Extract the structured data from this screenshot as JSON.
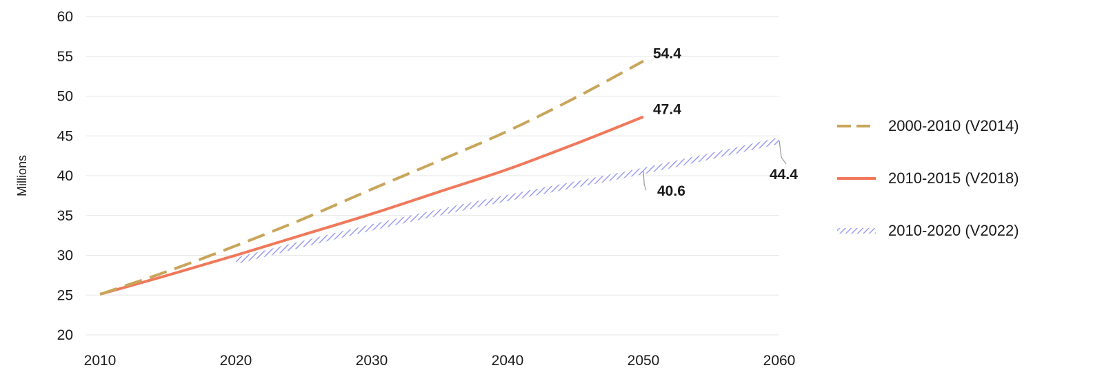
{
  "chart_data": {
    "type": "line",
    "title": "",
    "xlabel": "",
    "ylabel": "Millions",
    "xlim": [
      2010,
      2060
    ],
    "ylim": [
      20,
      60
    ],
    "xticks": [
      "2010",
      "2020",
      "2030",
      "2040",
      "2050",
      "2060"
    ],
    "yticks": [
      "20",
      "25",
      "30",
      "35",
      "40",
      "45",
      "50",
      "55",
      "60"
    ],
    "grid": true,
    "legend_position": "right",
    "series": [
      {
        "name": "2000-2010 (V2014)",
        "style": "dashed",
        "color": "#c8a559",
        "x": [
          2010,
          2015,
          2020,
          2025,
          2030,
          2035,
          2040,
          2045,
          2050
        ],
        "y": [
          25.1,
          28.0,
          31.2,
          34.6,
          38.3,
          41.9,
          45.6,
          49.8,
          54.4
        ]
      },
      {
        "name": "2010-2015 (V2018)",
        "style": "solid",
        "color": "#f0795b",
        "x": [
          2010,
          2015,
          2020,
          2025,
          2030,
          2035,
          2040,
          2045,
          2050
        ],
        "y": [
          25.1,
          27.5,
          30.0,
          32.6,
          35.2,
          38.0,
          40.8,
          44.0,
          47.4
        ]
      },
      {
        "name": "2010-2020 (V2022)",
        "style": "hatched",
        "color": "#9b9cf2",
        "x": [
          2020,
          2030,
          2040,
          2050,
          2060
        ],
        "y": [
          29.3,
          33.5,
          37.2,
          40.6,
          44.4
        ]
      }
    ],
    "annotations": [
      {
        "text": "54.4",
        "x": 2050,
        "y": 54.4,
        "series": 0
      },
      {
        "text": "47.4",
        "x": 2050,
        "y": 47.4,
        "series": 1
      },
      {
        "text": "40.6",
        "x": 2050,
        "y": 40.6,
        "series": 2
      },
      {
        "text": "44.4",
        "x": 2060,
        "y": 44.4,
        "series": 2
      }
    ]
  }
}
